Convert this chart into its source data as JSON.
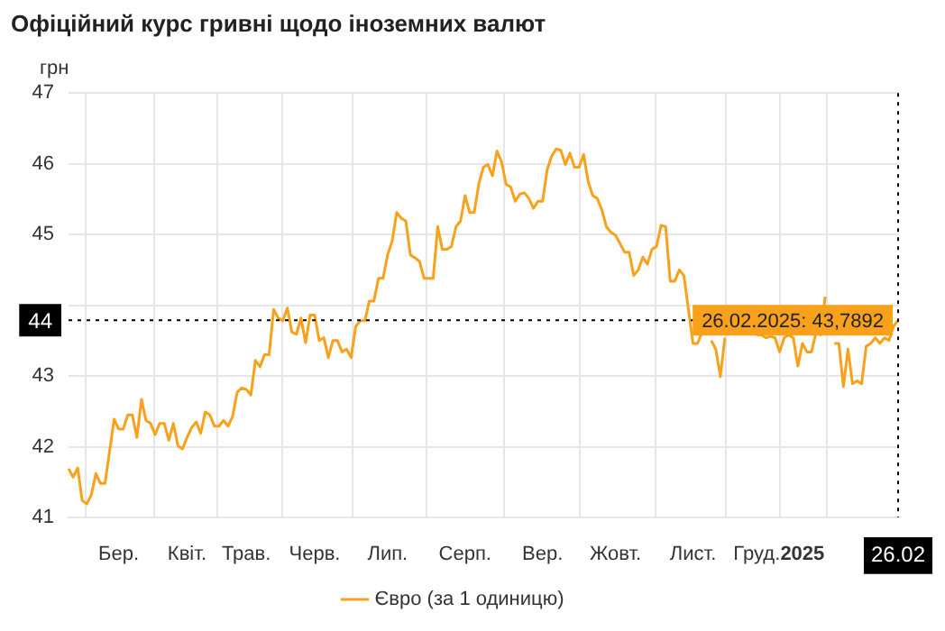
{
  "chart_data": {
    "type": "line",
    "title": "Офіційний курс гривні щодо іноземних валют",
    "ylabel": "грн",
    "categories": [
      null,
      null,
      null,
      null,
      null,
      null,
      null,
      null,
      null,
      null,
      null,
      "Бер.",
      null,
      null,
      null,
      null,
      null,
      null,
      null,
      null,
      null,
      null,
      null,
      null,
      null,
      null,
      "Квіт.",
      null,
      null,
      null,
      null,
      null,
      null,
      null,
      null,
      null,
      null,
      null,
      null,
      "Трав.",
      null,
      null,
      null,
      null,
      null,
      null,
      null,
      null,
      null,
      null,
      null,
      null,
      null,
      null,
      "Черв.",
      null,
      null,
      null,
      null,
      null,
      null,
      null,
      null,
      null,
      null,
      null,
      null,
      null,
      null,
      null,
      "Лип.",
      null,
      null,
      null,
      null,
      null,
      null,
      null,
      null,
      null,
      null,
      null,
      null,
      null,
      null,
      null,
      null,
      "Серп.",
      null,
      null,
      null,
      null,
      null,
      null,
      null,
      null,
      null,
      null,
      null,
      null,
      null,
      null,
      null,
      null,
      "Вер.",
      null,
      null,
      null,
      null,
      null,
      null,
      null,
      null,
      null,
      null,
      null,
      null,
      null,
      null,
      null,
      "Жовт.",
      null,
      null,
      null,
      null,
      null,
      null,
      null,
      null,
      null,
      null,
      null,
      null,
      null,
      null,
      null,
      null,
      "Лист.",
      null,
      null,
      null,
      null,
      null,
      null,
      null,
      null,
      null,
      null,
      null,
      null,
      null,
      "Груд.",
      null,
      null,
      null,
      null,
      null,
      null,
      null,
      null,
      null,
      "2025",
      null,
      null,
      null,
      null,
      null,
      null,
      null,
      null,
      null,
      null,
      null,
      null,
      null,
      null,
      null,
      null,
      null,
      null,
      null,
      null,
      "26.02"
    ],
    "ylim": [
      41,
      47
    ],
    "yticks": [
      41,
      42,
      43,
      {
        "value": 44,
        "label": null
      },
      45,
      46,
      47
    ],
    "grid": true,
    "legend": "bottom",
    "marker": "none",
    "line_style": "solid",
    "ref_lines": [
      {
        "axis": "y",
        "value": 43.7892,
        "label": "44",
        "color": "#000000",
        "line_style": "dotted"
      },
      {
        "axis": "x",
        "value": "26.02",
        "color": "#000000",
        "line_style": "dotted"
      }
    ],
    "annotations": [
      "26.02.2025: 43,7892"
    ],
    "series": [
      {
        "name": "Євро (за 1 одиницю)",
        "color": "#f9a11b",
        "values": [
          41.69,
          41.57,
          41.7,
          41.24,
          41.19,
          41.32,
          41.62,
          41.48,
          41.48,
          41.93,
          42.39,
          42.25,
          42.25,
          42.45,
          42.45,
          42.13,
          42.67,
          42.37,
          42.33,
          42.17,
          42.33,
          42.33,
          42.09,
          42.33,
          42.01,
          41.97,
          42.13,
          42.27,
          42.35,
          42.19,
          42.49,
          42.45,
          42.29,
          42.29,
          42.37,
          42.29,
          42.43,
          42.77,
          42.83,
          42.81,
          42.73,
          43.22,
          43.13,
          43.3,
          43.3,
          43.94,
          43.82,
          43.78,
          43.96,
          43.62,
          43.59,
          43.82,
          43.47,
          43.86,
          43.86,
          43.5,
          43.54,
          43.26,
          43.5,
          43.5,
          43.34,
          43.38,
          43.26,
          43.7,
          43.78,
          43.78,
          44.06,
          44.06,
          44.38,
          44.38,
          44.71,
          44.91,
          45.31,
          45.23,
          45.19,
          44.71,
          44.67,
          44.62,
          44.38,
          44.38,
          44.38,
          45.11,
          44.79,
          44.79,
          44.83,
          45.11,
          45.19,
          45.55,
          45.31,
          45.31,
          45.71,
          45.95,
          45.99,
          45.83,
          46.18,
          46.03,
          45.71,
          45.67,
          45.47,
          45.57,
          45.59,
          45.51,
          45.37,
          45.47,
          45.47,
          45.91,
          46.11,
          46.21,
          46.19,
          45.99,
          46.15,
          45.95,
          45.95,
          46.13,
          45.75,
          45.55,
          45.51,
          45.35,
          45.11,
          45.03,
          44.99,
          44.87,
          44.75,
          44.75,
          44.42,
          44.5,
          44.68,
          44.58,
          44.79,
          44.83,
          45.13,
          45.11,
          44.34,
          44.34,
          44.5,
          44.42,
          43.94,
          43.46,
          43.46,
          43.62,
          null,
          43.5,
          43.38,
          42.99,
          43.54,
          null,
          null,
          null,
          null,
          null,
          null,
          43.58,
          43.58,
          43.54,
          43.56,
          43.54,
          43.34,
          43.54,
          43.58,
          43.54,
          43.14,
          43.46,
          43.34,
          43.34,
          43.62,
          43.58,
          44.12,
          null,
          43.46,
          43.46,
          42.85,
          43.38,
          42.89,
          42.93,
          42.89,
          43.42,
          43.46,
          43.54,
          43.46,
          43.54,
          43.5,
          43.7,
          43.7892
        ]
      }
    ]
  }
}
